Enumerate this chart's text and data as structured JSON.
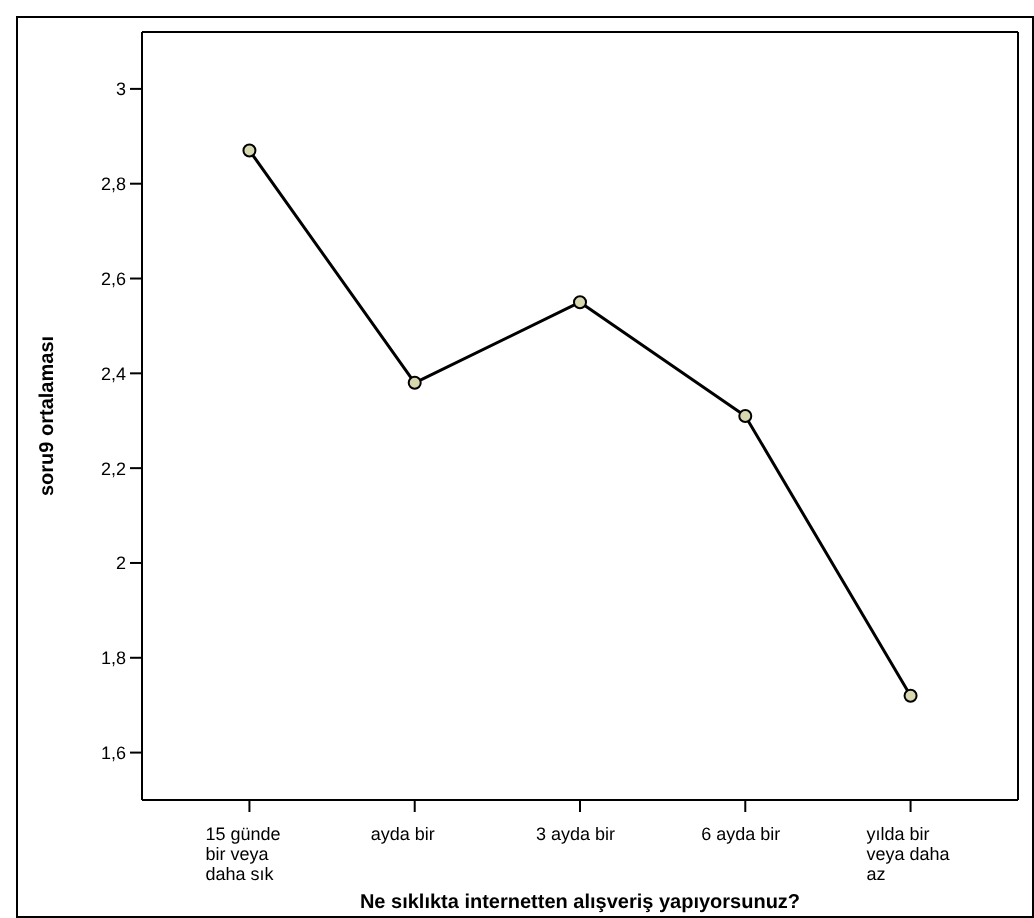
{
  "chart_data": {
    "type": "line",
    "xlabel": "Ne sıklıkta internetten alışveriş yapıyorsunuz?",
    "ylabel": "soru9 ortalaması",
    "categories": [
      "15 günde bir veya daha sık",
      "ayda bir",
      "3 ayda bir",
      "6 ayda bir",
      "yılda bir veya daha az"
    ],
    "series": [
      {
        "color": "#000000",
        "values": [
          2.87,
          2.38,
          2.55,
          2.31,
          1.72
        ]
      }
    ],
    "ylim": [
      1.5,
      3.12
    ],
    "yticks": [
      {
        "value": 1.6,
        "label": "1,6"
      },
      {
        "value": 1.8,
        "label": "1,8"
      },
      2,
      {
        "value": 2.2,
        "label": "2,2"
      },
      {
        "value": 2.4,
        "label": "2,4"
      },
      {
        "value": 2.6,
        "label": "2,6"
      },
      {
        "value": 2.8,
        "label": "2,8"
      },
      3
    ],
    "grid": false,
    "marker": "circle",
    "line_style": "solid"
  }
}
